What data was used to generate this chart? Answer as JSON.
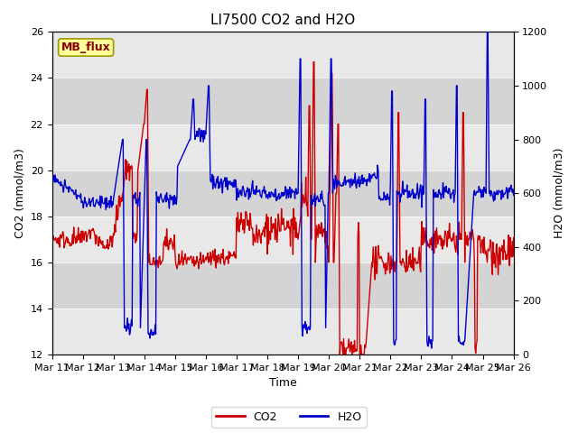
{
  "title": "LI7500 CO2 and H2O",
  "xlabel": "Time",
  "ylabel_left": "CO2 (mmol/m3)",
  "ylabel_right": "H2O (mmol/m3)",
  "ylim_left": [
    12,
    26
  ],
  "ylim_right": [
    0,
    1200
  ],
  "yticks_left": [
    12,
    14,
    16,
    18,
    20,
    22,
    24,
    26
  ],
  "yticks_right": [
    0,
    200,
    400,
    600,
    800,
    1000,
    1200
  ],
  "xtick_days": [
    11,
    12,
    13,
    14,
    15,
    16,
    17,
    18,
    19,
    20,
    21,
    22,
    23,
    24,
    25,
    26
  ],
  "xtick_labels": [
    "Mar 11",
    "Mar 12",
    "Mar 13",
    "Mar 14",
    "Mar 15",
    "Mar 16",
    "Mar 17",
    "Mar 18",
    "Mar 19",
    "Mar 20",
    "Mar 21",
    "Mar 22",
    "Mar 23",
    "Mar 24",
    "Mar 25",
    "Mar 26"
  ],
  "legend_labels": [
    "CO2",
    "H2O"
  ],
  "co2_color": "#cc0000",
  "h2o_color": "#0000cc",
  "band_colors": [
    "#e8e8e8",
    "#d4d4d4"
  ],
  "mb_flux_text": "MB_flux",
  "mb_flux_bg": "#ffff99",
  "mb_flux_border": "#999900",
  "mb_flux_text_color": "#880000",
  "title_fontsize": 11,
  "axis_label_fontsize": 9,
  "tick_fontsize": 8,
  "legend_fontsize": 9,
  "linewidth": 1.0
}
